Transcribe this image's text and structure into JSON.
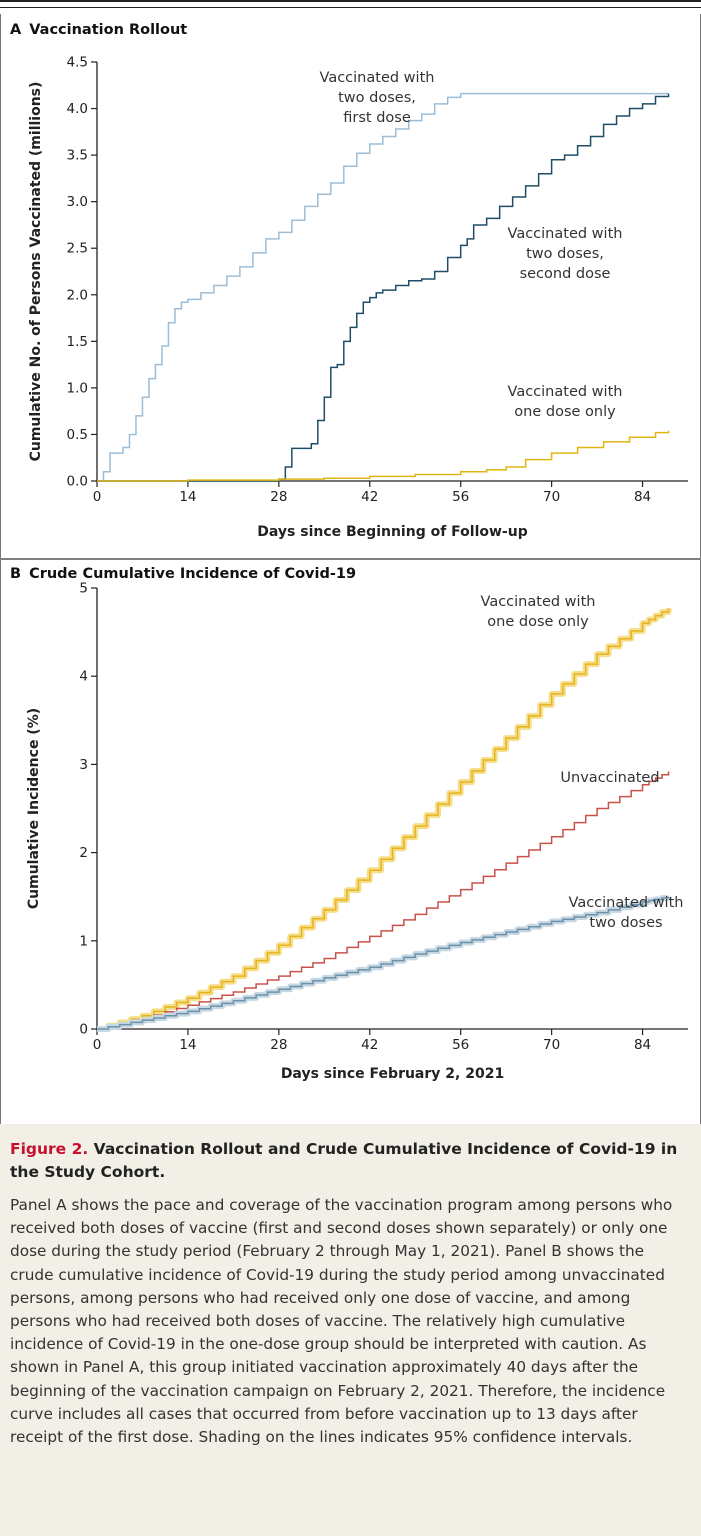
{
  "figure": {
    "label": "Figure 2.",
    "title": "Vaccination Rollout and Crude Cumulative Incidence of Covid-19 in the Study Cohort.",
    "caption": "Panel A shows the pace and coverage of the vaccination program among persons who received both doses of vaccine (first and second doses shown separately) or only one dose during the study period (February 2 through May 1, 2021). Panel B shows the crude cumulative incidence of Covid-19 during the study period among unvaccinated persons, among persons who had received only one dose of vaccine, and among persons who had received both doses of vaccine. The relatively high cumulative incidence of Covid-19 in the one-dose group should be interpreted with caution. As shown in Panel A, this group initiated vaccination approximately 40 days after the beginning of the vaccination campaign on February 2, 2021. Therefore, the incidence curve includes all cases that occurred from before vaccination up to 13 days after receipt of the first dose. Shading on the lines indicates 95% confidence intervals."
  },
  "chart_data": [
    {
      "panel": "A",
      "type": "line",
      "step": true,
      "title": "Vaccination Rollout",
      "xlabel": "Days since Beginning of Follow-up",
      "ylabel": "Cumulative No. of Persons Vaccinated (millions)",
      "xlim": [
        0,
        91
      ],
      "ylim": [
        0,
        4.5
      ],
      "xticks": [
        0,
        14,
        28,
        42,
        56,
        70,
        84
      ],
      "yticks": [
        0.0,
        0.5,
        1.0,
        1.5,
        2.0,
        2.5,
        3.0,
        3.5,
        4.0,
        4.5
      ],
      "ytick_labels": [
        "0.0",
        "0.5",
        "1.0",
        "1.5",
        "2.0",
        "2.5",
        "3.0",
        "3.5",
        "4.0",
        "4.5"
      ],
      "grid": false,
      "series": [
        {
          "name": "Vaccinated with two doses, first dose",
          "label_lines": [
            "Vaccinated with",
            "two doses,",
            "first dose"
          ],
          "color": "#9dbdd6",
          "x": [
            0,
            1,
            2,
            4,
            5,
            6,
            7,
            8,
            9,
            10,
            11,
            12,
            13,
            14,
            16,
            18,
            20,
            22,
            24,
            26,
            28,
            30,
            32,
            34,
            36,
            38,
            40,
            42,
            44,
            46,
            48,
            50,
            52,
            54,
            56,
            57,
            58,
            60,
            70,
            80,
            88
          ],
          "y": [
            0,
            0.1,
            0.3,
            0.36,
            0.5,
            0.7,
            0.9,
            1.1,
            1.25,
            1.45,
            1.7,
            1.85,
            1.92,
            1.95,
            2.02,
            2.1,
            2.2,
            2.3,
            2.45,
            2.6,
            2.67,
            2.8,
            2.95,
            3.08,
            3.2,
            3.38,
            3.52,
            3.62,
            3.7,
            3.78,
            3.87,
            3.94,
            4.05,
            4.12,
            4.16,
            4.16,
            4.16,
            4.16,
            4.16,
            4.16,
            4.16
          ]
        },
        {
          "name": "Vaccinated with two doses, second dose",
          "label_lines": [
            "Vaccinated with",
            "two doses,",
            "second dose"
          ],
          "color": "#1e4e66",
          "x": [
            0,
            28,
            29,
            30,
            33,
            34,
            35,
            36,
            37,
            38,
            39,
            40,
            41,
            42,
            43,
            44,
            46,
            48,
            50,
            52,
            54,
            56,
            57,
            58,
            60,
            62,
            64,
            66,
            68,
            70,
            72,
            74,
            76,
            78,
            80,
            82,
            84,
            86,
            88
          ],
          "y": [
            0,
            0.02,
            0.15,
            0.35,
            0.4,
            0.65,
            0.9,
            1.22,
            1.25,
            1.5,
            1.65,
            1.8,
            1.92,
            1.97,
            2.02,
            2.05,
            2.1,
            2.15,
            2.17,
            2.25,
            2.4,
            2.53,
            2.6,
            2.75,
            2.82,
            2.95,
            3.05,
            3.17,
            3.3,
            3.45,
            3.5,
            3.6,
            3.7,
            3.83,
            3.92,
            4.0,
            4.05,
            4.13,
            4.16
          ]
        },
        {
          "name": "Vaccinated with one dose only",
          "label_lines": [
            "Vaccinated with",
            "one dose only"
          ],
          "color": "#e0b512",
          "x": [
            0,
            14,
            28,
            35,
            42,
            49,
            56,
            60,
            63,
            66,
            70,
            74,
            78,
            82,
            86,
            88
          ],
          "y": [
            0,
            0.01,
            0.02,
            0.03,
            0.05,
            0.07,
            0.1,
            0.12,
            0.15,
            0.23,
            0.3,
            0.36,
            0.42,
            0.47,
            0.52,
            0.54
          ]
        }
      ]
    },
    {
      "panel": "B",
      "type": "line",
      "step": true,
      "title": "Crude Cumulative Incidence of Covid-19",
      "xlabel": "Days since February 2, 2021",
      "ylabel": "Cumulative Incidence (%)",
      "xlim": [
        0,
        91
      ],
      "ylim": [
        0,
        5
      ],
      "xticks": [
        0,
        14,
        28,
        42,
        56,
        70,
        84
      ],
      "yticks": [
        0,
        1,
        2,
        3,
        4,
        5
      ],
      "grid": false,
      "series": [
        {
          "name": "Vaccinated with one dose only",
          "label_lines": [
            "Vaccinated with",
            "one dose only"
          ],
          "color": "#e6b31e",
          "ci_color": "#f6df8c",
          "x": [
            0,
            7,
            14,
            21,
            28,
            35,
            42,
            49,
            56,
            63,
            70,
            77,
            84,
            88
          ],
          "y": [
            0,
            0.15,
            0.35,
            0.6,
            0.95,
            1.35,
            1.8,
            2.3,
            2.8,
            3.3,
            3.8,
            4.25,
            4.6,
            4.77
          ]
        },
        {
          "name": "Unvaccinated",
          "label_lines": [
            "Unvaccinated"
          ],
          "color": "#c8524a",
          "x": [
            0,
            7,
            14,
            21,
            28,
            35,
            42,
            49,
            56,
            63,
            70,
            77,
            84,
            88
          ],
          "y": [
            0,
            0.12,
            0.27,
            0.42,
            0.6,
            0.8,
            1.05,
            1.3,
            1.58,
            1.88,
            2.18,
            2.5,
            2.77,
            2.92
          ]
        },
        {
          "name": "Vaccinated with two doses",
          "label_lines": [
            "Vaccinated with",
            "two doses"
          ],
          "color": "#6c91aa",
          "ci_color": "#c8d8e3",
          "x": [
            0,
            7,
            14,
            21,
            28,
            35,
            42,
            49,
            56,
            63,
            70,
            77,
            84,
            88
          ],
          "y": [
            0,
            0.1,
            0.2,
            0.32,
            0.45,
            0.58,
            0.7,
            0.85,
            0.98,
            1.1,
            1.22,
            1.32,
            1.44,
            1.5
          ]
        }
      ]
    }
  ]
}
